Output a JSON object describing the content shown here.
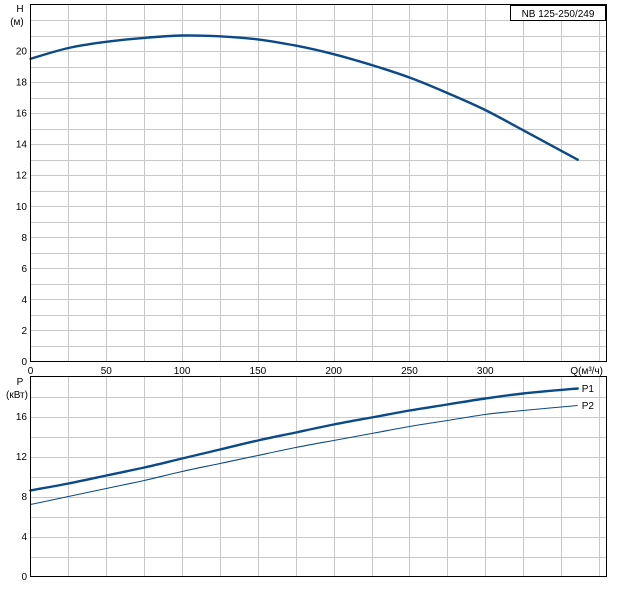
{
  "title": "NB 125-250/249",
  "chart_data": [
    {
      "type": "line",
      "xlabel": "Q(м³/ч)",
      "ylabel": "H",
      "yunit": "(м)",
      "xlim": [
        0,
        380
      ],
      "ylim": [
        0,
        23
      ],
      "x_ticks": [
        0,
        50,
        100,
        150,
        200,
        250,
        300
      ],
      "y_ticks": [
        0,
        2,
        4,
        6,
        8,
        10,
        12,
        14,
        16,
        18,
        20
      ],
      "grid": true,
      "series": [
        {
          "x": [
            0,
            25,
            50,
            75,
            100,
            125,
            150,
            175,
            200,
            225,
            250,
            275,
            300,
            325,
            361
          ],
          "y": [
            19.5,
            20.2,
            20.6,
            20.85,
            21.0,
            20.95,
            20.75,
            20.35,
            19.8,
            19.1,
            18.3,
            17.3,
            16.2,
            14.9,
            13.0
          ]
        }
      ]
    },
    {
      "type": "line",
      "xlabel": "",
      "ylabel": "P",
      "yunit": "(кВт)",
      "xlim": [
        0,
        380
      ],
      "ylim": [
        0,
        20
      ],
      "y_ticks": [
        0,
        4,
        8,
        12,
        16
      ],
      "grid": true,
      "series": [
        {
          "name": "P1",
          "x": [
            0,
            25,
            50,
            75,
            100,
            125,
            150,
            175,
            200,
            225,
            250,
            275,
            300,
            325,
            361
          ],
          "y": [
            8.6,
            9.3,
            10.1,
            10.9,
            11.8,
            12.7,
            13.6,
            14.4,
            15.2,
            15.9,
            16.6,
            17.2,
            17.8,
            18.3,
            18.8
          ]
        },
        {
          "name": "P2",
          "x": [
            0,
            25,
            50,
            75,
            100,
            125,
            150,
            175,
            200,
            225,
            250,
            275,
            300,
            325,
            361
          ],
          "y": [
            7.2,
            8.0,
            8.8,
            9.6,
            10.5,
            11.3,
            12.1,
            12.9,
            13.6,
            14.3,
            15.0,
            15.6,
            16.2,
            16.6,
            17.1
          ]
        }
      ]
    }
  ]
}
